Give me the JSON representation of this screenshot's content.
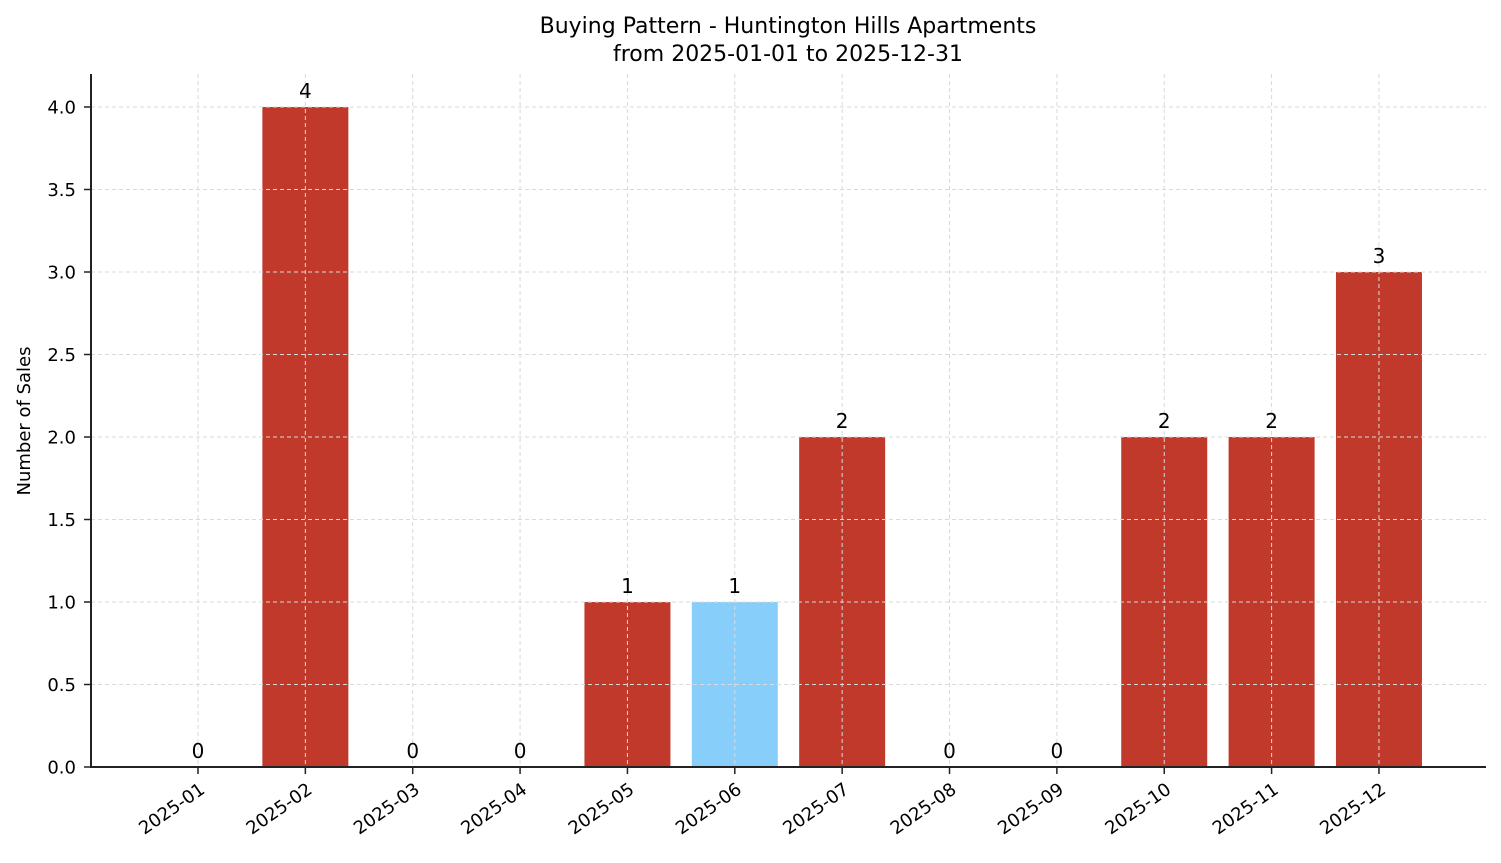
{
  "chart_data": {
    "type": "bar",
    "title": "Buying Pattern - Huntington Hills Apartments",
    "subtitle": "from 2025-01-01 to 2025-12-31",
    "xlabel": "",
    "ylabel": "Number of Sales",
    "categories": [
      "2025-01",
      "2025-02",
      "2025-03",
      "2025-04",
      "2025-05",
      "2025-06",
      "2025-07",
      "2025-08",
      "2025-09",
      "2025-10",
      "2025-11",
      "2025-12"
    ],
    "values": [
      0,
      4,
      0,
      0,
      1,
      1,
      2,
      0,
      0,
      2,
      2,
      3
    ],
    "bar_labels": [
      "0",
      "4",
      "0",
      "0",
      "1",
      "1",
      "2",
      "0",
      "0",
      "2",
      "2",
      "3"
    ],
    "highlighted_category": "2025-06",
    "colors": {
      "default_bar": "#c0392b",
      "highlight_bar": "#87cefa",
      "grid": "#d9d9d9",
      "axis": "#222222"
    },
    "ylim": [
      0,
      4.2
    ],
    "yticks": [
      0.0,
      0.5,
      1.0,
      1.5,
      2.0,
      2.5,
      3.0,
      3.5,
      4.0
    ],
    "ytick_labels": [
      "0.0",
      "0.5",
      "1.0",
      "1.5",
      "2.0",
      "2.5",
      "3.0",
      "3.5",
      "4.0"
    ],
    "grid": true,
    "grid_style": "dashed",
    "legend": null,
    "xtick_rotation": 35
  }
}
